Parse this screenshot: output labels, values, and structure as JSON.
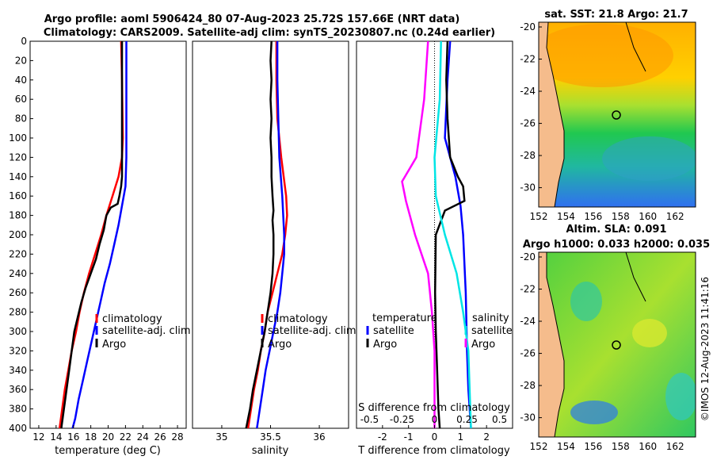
{
  "titles": {
    "line1": "Argo profile: aoml 5906424_80 07-Aug-2023 25.72S 157.66E (NRT data)",
    "line2": "Climatology: CARS2009. Satellite-adj clim: synTS_20230807.nc (0.24d earlier)"
  },
  "colors": {
    "climatology": "#ff0000",
    "satellite": "#0000ff",
    "argo": "#000000",
    "salinity_clim": "#ff00ff",
    "salinity_sat": "#00e5e5",
    "land": "#f5bc8c"
  },
  "depth_axis": {
    "ticks": [
      0,
      20,
      40,
      60,
      80,
      100,
      120,
      140,
      160,
      180,
      200,
      220,
      240,
      260,
      280,
      300,
      320,
      340,
      360,
      380,
      400
    ],
    "ylim": [
      0,
      400
    ]
  },
  "legend_main": {
    "climatology": "climatology",
    "satellite": "satellite-adj. clim",
    "argo": "Argo"
  },
  "legend_diff": {
    "temperature_header": "temperature",
    "salinity_header": "salinity",
    "satellite": "satellite",
    "argo": "Argo"
  },
  "maps": {
    "sst_title": "sat. SST: 21.8 Argo: 21.7",
    "sla_title1": "Altim. SLA: 0.091",
    "sla_title2": "Argo h1000: 0.033 h2000: 0.035",
    "xticks": [
      152,
      154,
      156,
      158,
      160,
      162
    ],
    "yticks": [
      -20,
      -22,
      -24,
      -26,
      -28,
      -30
    ]
  },
  "credit": "©IMOS 12-Aug-2023 11:41:16",
  "chart_data": [
    {
      "type": "line",
      "panel": "temperature",
      "xlabel": "temperature (deg C)",
      "ylabel": "",
      "xlim": [
        11,
        29
      ],
      "ylim": [
        400,
        0
      ],
      "xticks": [
        12,
        14,
        16,
        18,
        20,
        22,
        24,
        26,
        28
      ],
      "series": [
        {
          "name": "climatology",
          "color": "#ff0000",
          "points": [
            [
              21.5,
              0
            ],
            [
              21.6,
              40
            ],
            [
              21.7,
              100
            ],
            [
              21.6,
              120
            ],
            [
              21.2,
              140
            ],
            [
              20.5,
              160
            ],
            [
              19.8,
              180
            ],
            [
              19.2,
              200
            ],
            [
              18.5,
              220
            ],
            [
              17.8,
              240
            ],
            [
              17.2,
              260
            ],
            [
              16.7,
              280
            ],
            [
              16.3,
              300
            ],
            [
              15.8,
              320
            ],
            [
              15.4,
              340
            ],
            [
              15.0,
              360
            ],
            [
              14.7,
              380
            ],
            [
              14.4,
              400
            ]
          ]
        },
        {
          "name": "satellite-adj. clim",
          "color": "#0000ff",
          "points": [
            [
              22.1,
              0
            ],
            [
              22.1,
              60
            ],
            [
              22.1,
              120
            ],
            [
              22.0,
              150
            ],
            [
              21.6,
              170
            ],
            [
              21.2,
              190
            ],
            [
              20.7,
              210
            ],
            [
              20.2,
              230
            ],
            [
              19.6,
              250
            ],
            [
              19.1,
              270
            ],
            [
              18.6,
              290
            ],
            [
              18.1,
              310
            ],
            [
              17.6,
              330
            ],
            [
              17.1,
              350
            ],
            [
              16.6,
              370
            ],
            [
              16.2,
              390
            ],
            [
              15.9,
              400
            ]
          ]
        },
        {
          "name": "Argo",
          "color": "#000000",
          "points": [
            [
              21.6,
              0
            ],
            [
              21.6,
              20
            ],
            [
              21.6,
              60
            ],
            [
              21.6,
              100
            ],
            [
              21.6,
              140
            ],
            [
              21.5,
              150
            ],
            [
              21.3,
              160
            ],
            [
              21.1,
              168
            ],
            [
              20.3,
              172
            ],
            [
              19.8,
              180
            ],
            [
              19.5,
              195
            ],
            [
              19.0,
              210
            ],
            [
              18.6,
              225
            ],
            [
              18.0,
              240
            ],
            [
              17.4,
              255
            ],
            [
              16.9,
              270
            ],
            [
              16.5,
              285
            ],
            [
              16.1,
              300
            ],
            [
              15.8,
              320
            ],
            [
              15.5,
              340
            ],
            [
              15.2,
              360
            ],
            [
              14.9,
              380
            ],
            [
              14.6,
              400
            ]
          ]
        }
      ]
    },
    {
      "type": "line",
      "panel": "salinity",
      "xlabel": "salinity",
      "ylabel": "",
      "xlim": [
        34.7,
        36.3
      ],
      "ylim": [
        400,
        0
      ],
      "xticks": [
        35,
        35.5,
        36
      ],
      "series": [
        {
          "name": "climatology",
          "color": "#ff0000",
          "points": [
            [
              35.56,
              0
            ],
            [
              35.56,
              40
            ],
            [
              35.57,
              80
            ],
            [
              35.61,
              120
            ],
            [
              35.66,
              160
            ],
            [
              35.67,
              180
            ],
            [
              35.65,
              200
            ],
            [
              35.62,
              220
            ],
            [
              35.57,
              240
            ],
            [
              35.52,
              260
            ],
            [
              35.47,
              280
            ],
            [
              35.44,
              300
            ],
            [
              35.4,
              320
            ],
            [
              35.37,
              340
            ],
            [
              35.33,
              360
            ],
            [
              35.3,
              380
            ],
            [
              35.27,
              400
            ]
          ]
        },
        {
          "name": "satellite-adj. clim",
          "color": "#0000ff",
          "points": [
            [
              35.57,
              0
            ],
            [
              35.57,
              40
            ],
            [
              35.58,
              80
            ],
            [
              35.59,
              120
            ],
            [
              35.62,
              160
            ],
            [
              35.64,
              200
            ],
            [
              35.64,
              220
            ],
            [
              35.62,
              240
            ],
            [
              35.6,
              260
            ],
            [
              35.57,
              280
            ],
            [
              35.53,
              300
            ],
            [
              35.49,
              320
            ],
            [
              35.45,
              340
            ],
            [
              35.42,
              360
            ],
            [
              35.39,
              380
            ],
            [
              35.36,
              400
            ]
          ]
        },
        {
          "name": "Argo",
          "color": "#000000",
          "points": [
            [
              35.51,
              0
            ],
            [
              35.5,
              20
            ],
            [
              35.51,
              40
            ],
            [
              35.5,
              60
            ],
            [
              35.51,
              80
            ],
            [
              35.5,
              100
            ],
            [
              35.51,
              120
            ],
            [
              35.51,
              140
            ],
            [
              35.52,
              160
            ],
            [
              35.53,
              175
            ],
            [
              35.52,
              185
            ],
            [
              35.53,
              200
            ],
            [
              35.53,
              220
            ],
            [
              35.52,
              240
            ],
            [
              35.5,
              260
            ],
            [
              35.47,
              280
            ],
            [
              35.44,
              300
            ],
            [
              35.4,
              320
            ],
            [
              35.36,
              340
            ],
            [
              35.32,
              360
            ],
            [
              35.29,
              380
            ],
            [
              35.25,
              400
            ]
          ]
        }
      ]
    },
    {
      "type": "line",
      "panel": "difference",
      "xlabel": "T difference from climatology",
      "xlabel_top": "S difference from climatology",
      "xlim": [
        -3,
        3
      ],
      "ylim": [
        400,
        0
      ],
      "xticks": [
        -2,
        -1,
        0,
        1,
        2
      ],
      "sticks": [
        -0.5,
        -0.25,
        0,
        0.25,
        0.5
      ],
      "stick_labels": [
        "-0.5",
        "-0.25",
        "0",
        "0.25",
        "0.5"
      ],
      "series": [
        {
          "name": "T satellite",
          "color": "#0000ff",
          "points": [
            [
              0.6,
              0
            ],
            [
              0.5,
              40
            ],
            [
              0.4,
              100
            ],
            [
              0.8,
              140
            ],
            [
              1.0,
              170
            ],
            [
              1.1,
              200
            ],
            [
              1.2,
              260
            ],
            [
              1.25,
              320
            ],
            [
              1.3,
              360
            ],
            [
              1.4,
              400
            ]
          ]
        },
        {
          "name": "T Argo",
          "color": "#000000",
          "points": [
            [
              0.5,
              0
            ],
            [
              0.45,
              40
            ],
            [
              0.5,
              80
            ],
            [
              0.6,
              120
            ],
            [
              0.9,
              140
            ],
            [
              1.1,
              150
            ],
            [
              1.15,
              165
            ],
            [
              0.4,
              175
            ],
            [
              0.05,
              200
            ],
            [
              0.02,
              260
            ],
            [
              0.05,
              300
            ],
            [
              0.1,
              340
            ],
            [
              0.15,
              380
            ],
            [
              0.2,
              400
            ]
          ]
        },
        {
          "name": "S satellite",
          "color": "#00e5e5",
          "points": [
            [
              0.05,
              0
            ],
            [
              0.04,
              60
            ],
            [
              0.0,
              120
            ],
            [
              0.01,
              160
            ],
            [
              0.08,
              200
            ],
            [
              0.17,
              240
            ],
            [
              0.22,
              280
            ],
            [
              0.26,
              320
            ],
            [
              0.27,
              360
            ],
            [
              0.28,
              400
            ]
          ]
        },
        {
          "name": "S Argo",
          "color": "#ff00ff",
          "points": [
            [
              -0.05,
              0
            ],
            [
              -0.08,
              60
            ],
            [
              -0.14,
              120
            ],
            [
              -0.25,
              145
            ],
            [
              -0.22,
              165
            ],
            [
              -0.15,
              200
            ],
            [
              -0.05,
              240
            ],
            [
              -0.02,
              280
            ],
            [
              0.0,
              320
            ],
            [
              0.0,
              360
            ],
            [
              0.0,
              400
            ]
          ]
        }
      ]
    }
  ]
}
